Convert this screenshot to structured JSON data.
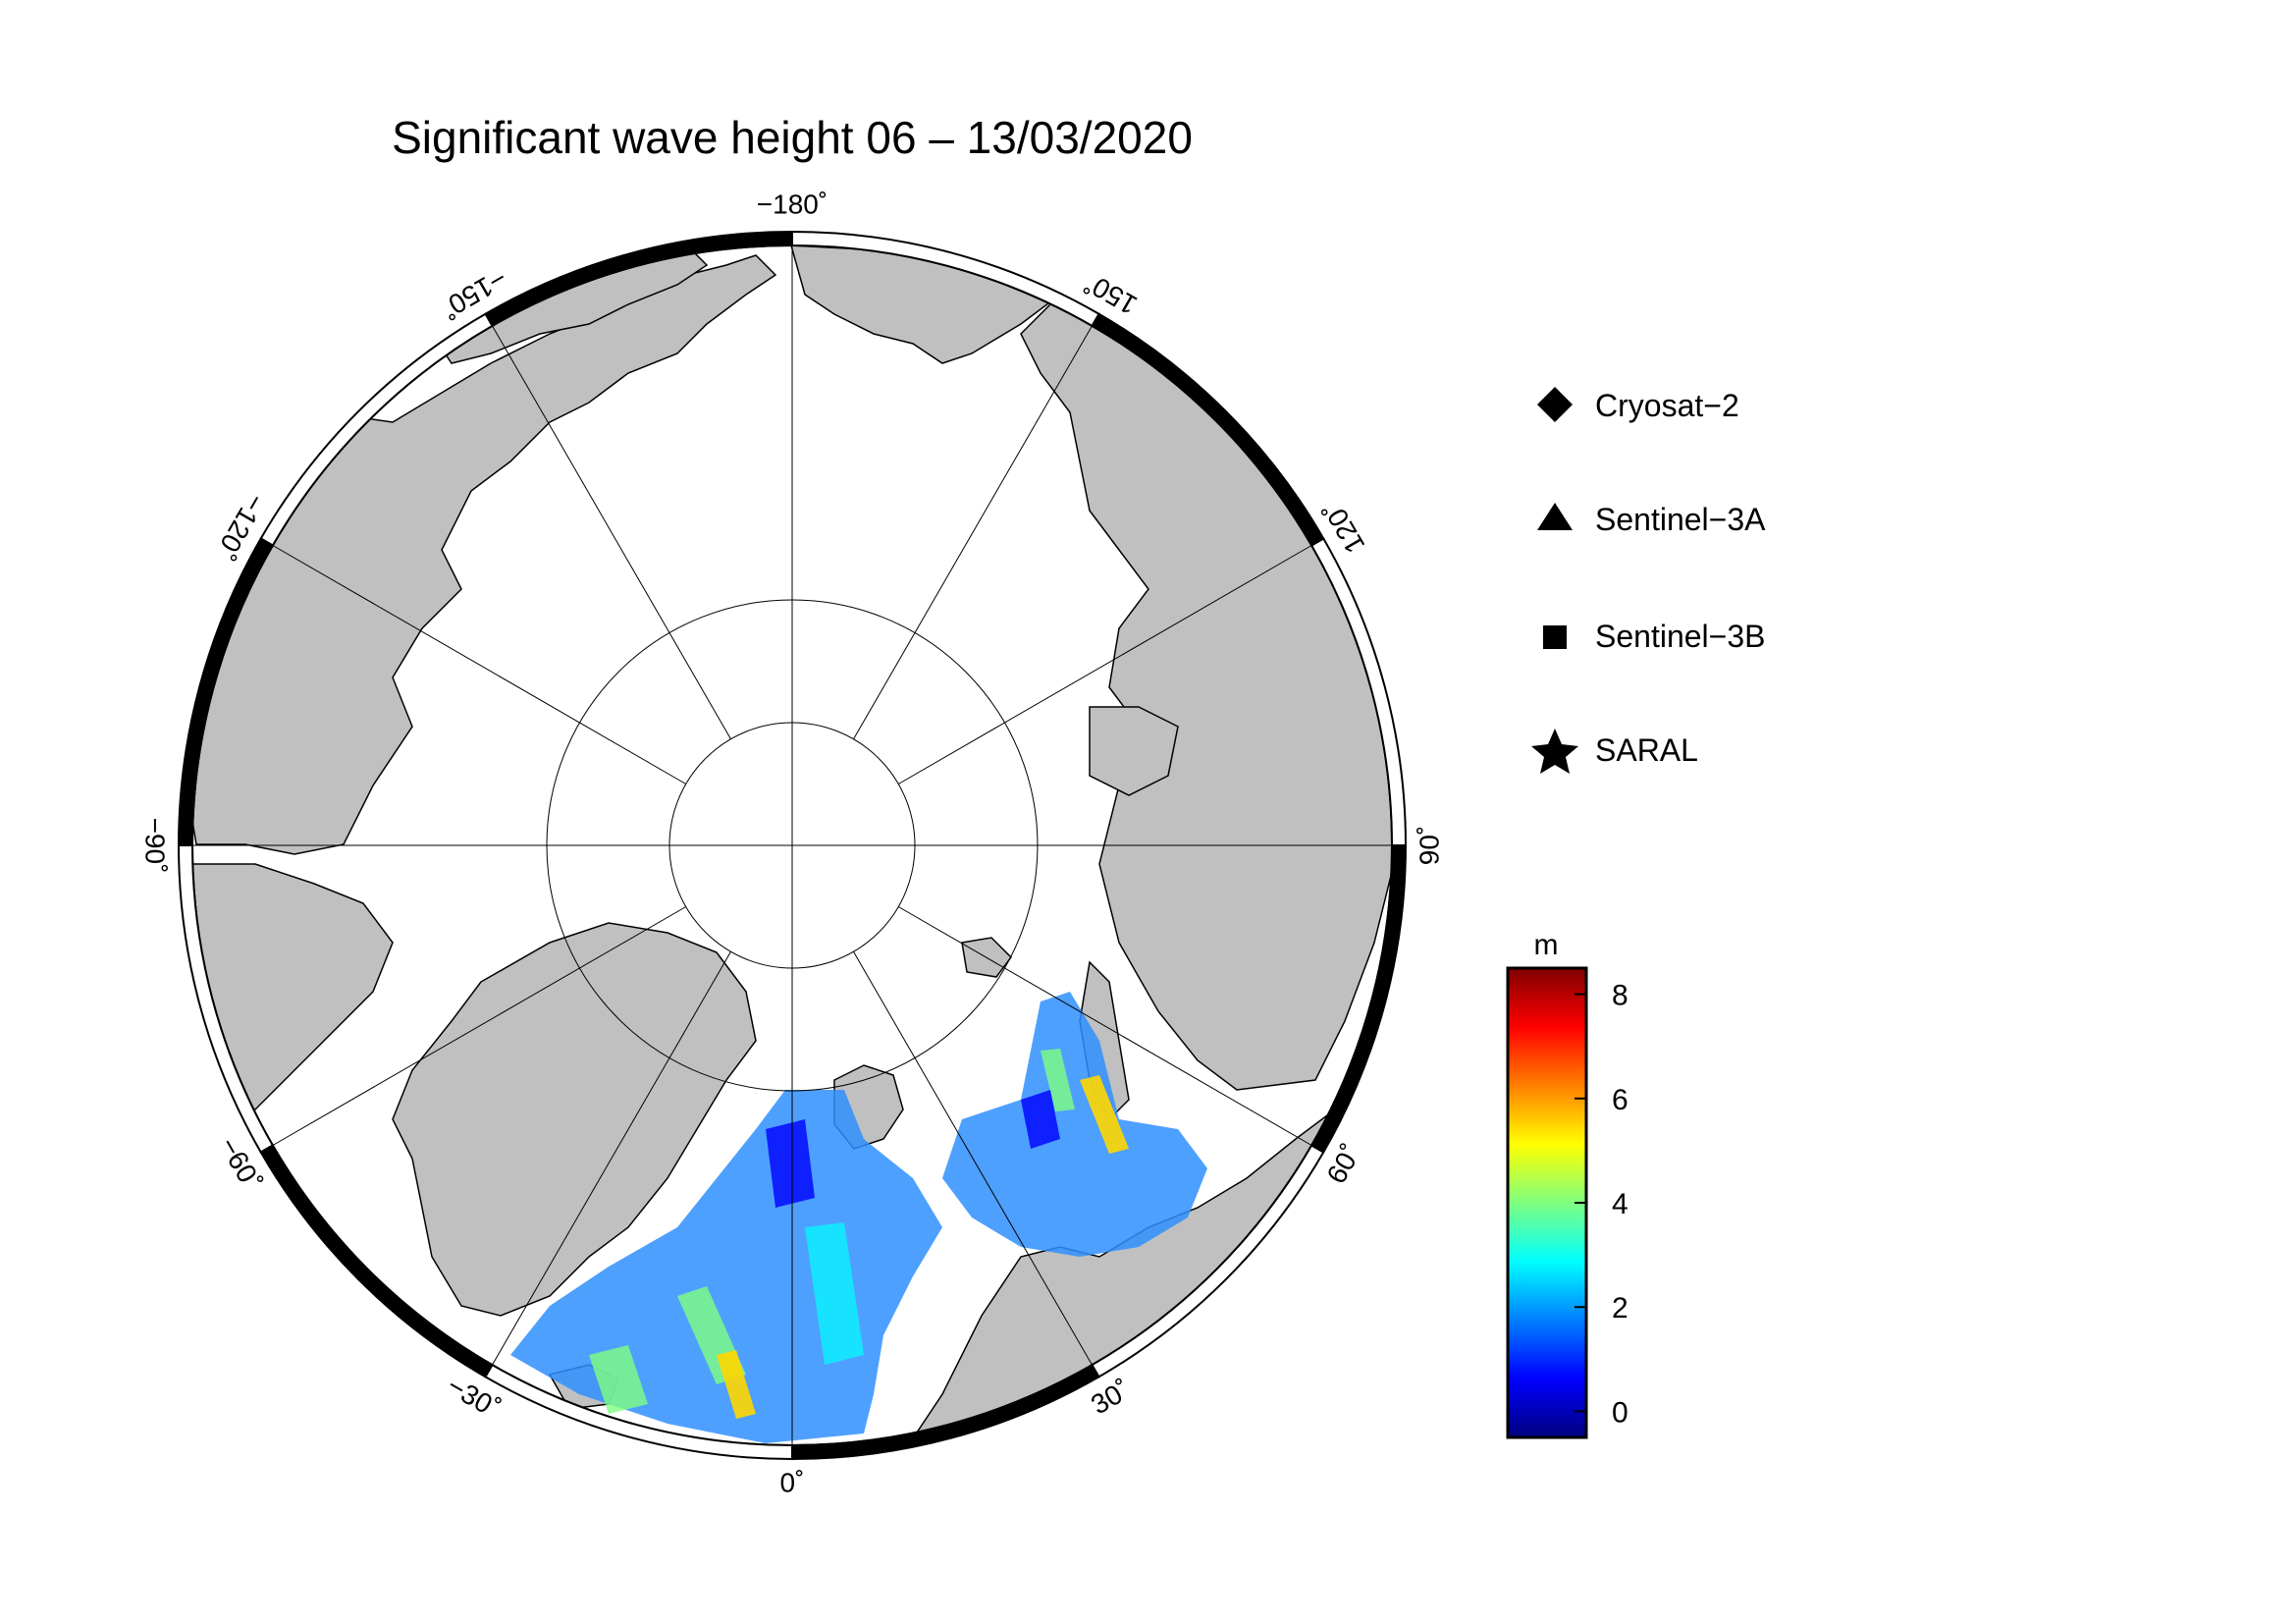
{
  "title": "Significant wave height 06 – 13/03/2020",
  "longitude_labels": [
    {
      "value": "−180˚",
      "lon": 180
    },
    {
      "value": "150˚",
      "lon": 150
    },
    {
      "value": "120˚",
      "lon": 120
    },
    {
      "value": "90˚",
      "lon": 90
    },
    {
      "value": "60˚",
      "lon": 60
    },
    {
      "value": "30˚",
      "lon": 30
    },
    {
      "value": "0˚",
      "lon": 0
    },
    {
      "value": "−30˚",
      "lon": -30
    },
    {
      "value": "−60˚",
      "lon": -60
    },
    {
      "value": "−90˚",
      "lon": -90
    },
    {
      "value": "−120˚",
      "lon": -120
    },
    {
      "value": "−150˚",
      "lon": -150
    }
  ],
  "legend": {
    "items": [
      {
        "label": "Cryosat−2",
        "symbol": "diamond"
      },
      {
        "label": "Sentinel−3A",
        "symbol": "triangle"
      },
      {
        "label": "Sentinel−3B",
        "symbol": "square"
      },
      {
        "label": "SARAL",
        "symbol": "star"
      }
    ]
  },
  "colorbar": {
    "unit": "m",
    "min": -0.5,
    "max": 8.5,
    "ticks": [
      "0",
      "2",
      "4",
      "6",
      "8"
    ],
    "tick_values": [
      0,
      2,
      4,
      6,
      8
    ],
    "colors": [
      "#00007f",
      "#0000ff",
      "#007fff",
      "#00ffff",
      "#7fff7f",
      "#ffff00",
      "#ff7f00",
      "#ff0000",
      "#7f0000"
    ]
  },
  "map": {
    "projection": "polar stereographic (north pole)",
    "land_color": "#c0c0c0",
    "ocean_color": "#ffffff",
    "frame": "alternating black/white 30° segments",
    "graticule_longitude_step_deg": 30,
    "graticule_latitude_circles": 2
  }
}
